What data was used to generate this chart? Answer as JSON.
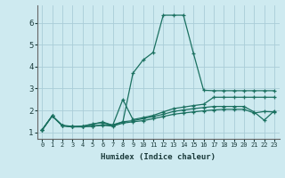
{
  "xlabel": "Humidex (Indice chaleur)",
  "bg_color": "#ceeaf0",
  "line_color": "#1a7060",
  "grid_color": "#aacdd8",
  "xlim": [
    -0.5,
    23.5
  ],
  "ylim": [
    0.7,
    6.8
  ],
  "yticks": [
    1,
    2,
    3,
    4,
    5,
    6
  ],
  "xticks": [
    0,
    1,
    2,
    3,
    4,
    5,
    6,
    7,
    8,
    9,
    10,
    11,
    12,
    13,
    14,
    15,
    16,
    17,
    18,
    19,
    20,
    21,
    22,
    23
  ],
  "series": [
    [
      1.1,
      1.75,
      1.3,
      1.25,
      1.25,
      1.28,
      1.32,
      1.28,
      1.42,
      1.48,
      1.53,
      1.62,
      1.72,
      1.82,
      1.88,
      1.93,
      1.98,
      2.02,
      2.05,
      2.05,
      2.05,
      1.88,
      1.95,
      1.93
    ],
    [
      1.1,
      1.75,
      1.3,
      1.25,
      1.25,
      1.28,
      1.34,
      1.34,
      1.48,
      1.53,
      1.62,
      1.72,
      1.82,
      1.95,
      2.02,
      2.08,
      2.13,
      2.18,
      2.18,
      2.18,
      2.18,
      1.93,
      1.55,
      1.98
    ],
    [
      1.1,
      1.75,
      1.3,
      1.25,
      1.28,
      1.38,
      1.44,
      1.32,
      2.5,
      1.58,
      1.67,
      1.77,
      1.93,
      2.08,
      2.15,
      2.22,
      2.28,
      2.6,
      2.6,
      2.6,
      2.6,
      2.6,
      2.6,
      2.6
    ],
    [
      1.12,
      1.75,
      1.32,
      1.27,
      1.27,
      1.37,
      1.47,
      1.32,
      1.47,
      3.7,
      4.3,
      4.65,
      6.35,
      6.35,
      6.35,
      4.6,
      2.92,
      2.9,
      2.9,
      2.9,
      2.9,
      2.9,
      2.9,
      2.9
    ]
  ]
}
